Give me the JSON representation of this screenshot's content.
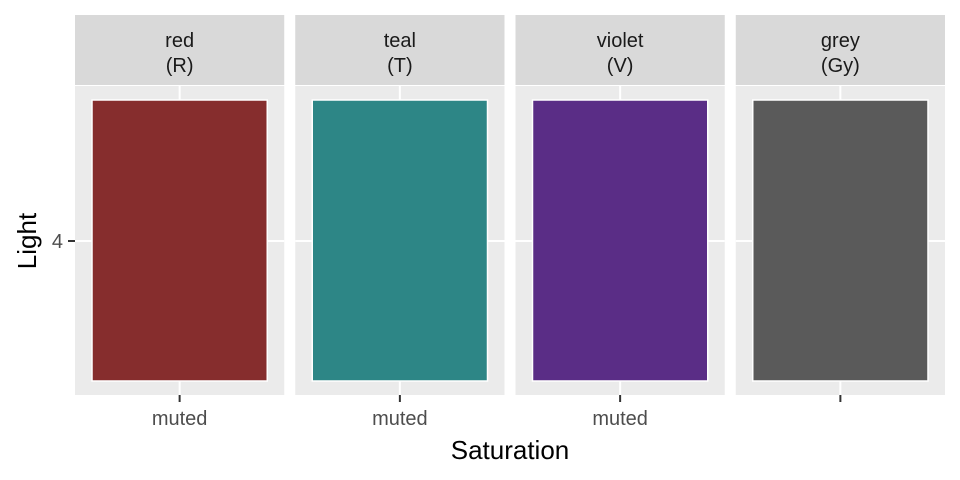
{
  "chart_data": {
    "type": "tile",
    "xlabel": "Saturation",
    "ylabel": "Light",
    "y_ticks": [
      "4"
    ],
    "grid": true,
    "legend": "none",
    "facets": [
      {
        "hue": "red",
        "code": "(R)",
        "x_label": "muted",
        "y": "4",
        "color": "#862D2D"
      },
      {
        "hue": "teal",
        "code": "(T)",
        "x_label": "muted",
        "y": "4",
        "color": "#2D8686"
      },
      {
        "hue": "violet",
        "code": "(V)",
        "x_label": "muted",
        "y": "4",
        "color": "#5A2D86"
      },
      {
        "hue": "grey",
        "code": "(Gy)",
        "x_label": "",
        "y": "4",
        "color": "#5A5A5A"
      }
    ],
    "panel_background": "#EBEBEB",
    "strip_background": "#D9D9D9",
    "gridline_color": "#FFFFFF"
  }
}
